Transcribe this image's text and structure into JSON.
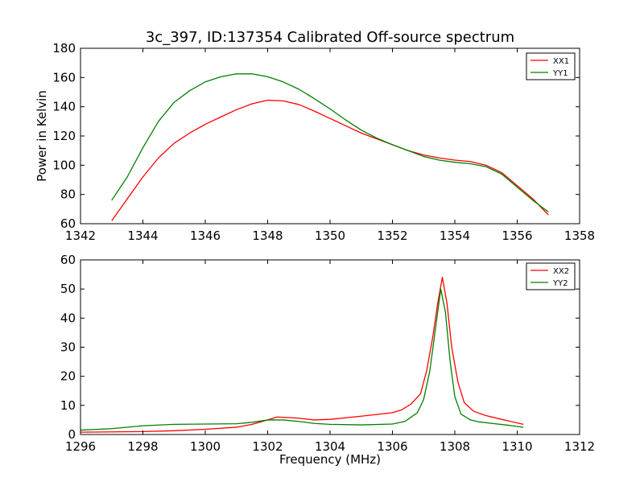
{
  "title": "3c_397, ID:137354 Calibrated Off-source spectrum",
  "chart_data": [
    {
      "type": "line",
      "title": "3c_397, ID:137354 Calibrated Off-source spectrum",
      "xlabel": "",
      "ylabel": "Power in Kelvin",
      "xlim": [
        1342,
        1358
      ],
      "ylim": [
        60,
        180
      ],
      "xticks": [
        1342,
        1344,
        1346,
        1348,
        1350,
        1352,
        1354,
        1356,
        1358
      ],
      "yticks": [
        60,
        80,
        100,
        120,
        140,
        160,
        180
      ],
      "grid": false,
      "legend_position": "top-right",
      "series": [
        {
          "name": "XX1",
          "color": "#ff0000",
          "x": [
            1343.0,
            1343.5,
            1344.0,
            1344.5,
            1345.0,
            1345.5,
            1346.0,
            1346.5,
            1347.0,
            1347.5,
            1348.0,
            1348.5,
            1349.0,
            1349.5,
            1350.0,
            1350.5,
            1351.0,
            1351.5,
            1352.0,
            1352.5,
            1353.0,
            1353.5,
            1354.0,
            1354.5,
            1355.0,
            1355.5,
            1356.0,
            1356.5,
            1357.0
          ],
          "y": [
            62,
            77,
            92,
            105,
            115,
            122,
            128,
            133,
            138,
            142,
            144.5,
            144,
            141.5,
            137,
            132,
            127,
            122,
            118,
            114,
            110,
            107,
            105,
            103.5,
            102.5,
            100,
            95,
            86,
            77,
            66
          ]
        },
        {
          "name": "YY1",
          "color": "#008000",
          "x": [
            1343.0,
            1343.5,
            1344.0,
            1344.5,
            1345.0,
            1345.5,
            1346.0,
            1346.5,
            1347.0,
            1347.5,
            1348.0,
            1348.5,
            1349.0,
            1349.5,
            1350.0,
            1350.5,
            1351.0,
            1351.5,
            1352.0,
            1352.5,
            1353.0,
            1353.5,
            1354.0,
            1354.5,
            1355.0,
            1355.5,
            1356.0,
            1356.5,
            1357.0
          ],
          "y": [
            76,
            92,
            112,
            130,
            143,
            151,
            157,
            160.5,
            162.5,
            162.5,
            160.5,
            157,
            152,
            145.5,
            138.5,
            131,
            124,
            118.5,
            114,
            110,
            106,
            103.5,
            102,
            101,
            99,
            94,
            85,
            76,
            68
          ]
        }
      ]
    },
    {
      "type": "line",
      "title": "",
      "xlabel": "Frequency (MHz)",
      "ylabel": "",
      "xlim": [
        1296,
        1312
      ],
      "ylim": [
        0,
        60
      ],
      "xticks": [
        1296,
        1298,
        1300,
        1302,
        1304,
        1306,
        1308,
        1310,
        1312
      ],
      "yticks": [
        0,
        10,
        20,
        30,
        40,
        50,
        60
      ],
      "grid": false,
      "legend_position": "top-right",
      "series": [
        {
          "name": "XX2",
          "color": "#ff0000",
          "x": [
            1296.0,
            1297.0,
            1298.0,
            1299.0,
            1300.0,
            1301.0,
            1301.5,
            1302.0,
            1302.3,
            1302.7,
            1303.0,
            1303.5,
            1304.0,
            1305.0,
            1306.0,
            1306.3,
            1306.6,
            1306.9,
            1307.1,
            1307.3,
            1307.45,
            1307.6,
            1307.75,
            1307.9,
            1308.1,
            1308.3,
            1308.6,
            1309.0,
            1309.5,
            1310.2
          ],
          "y": [
            0.8,
            0.9,
            1.0,
            1.3,
            1.8,
            2.5,
            3.5,
            5.0,
            6.0,
            5.8,
            5.6,
            5.0,
            5.2,
            6.3,
            7.5,
            8.5,
            10.5,
            14.0,
            22.0,
            34.0,
            45.0,
            54.0,
            45.0,
            30.0,
            18.0,
            11.0,
            8.0,
            6.5,
            5.2,
            3.5
          ]
        },
        {
          "name": "YY2",
          "color": "#008000",
          "x": [
            1296.0,
            1297.0,
            1298.0,
            1299.0,
            1300.0,
            1301.0,
            1301.5,
            1302.0,
            1302.5,
            1303.0,
            1303.5,
            1304.0,
            1305.0,
            1306.0,
            1306.4,
            1306.8,
            1307.0,
            1307.2,
            1307.4,
            1307.55,
            1307.7,
            1307.85,
            1308.0,
            1308.2,
            1308.5,
            1308.8,
            1309.2,
            1309.7,
            1310.2
          ],
          "y": [
            1.5,
            2.0,
            3.0,
            3.5,
            3.6,
            3.7,
            4.2,
            5.0,
            5.0,
            4.5,
            3.8,
            3.5,
            3.3,
            3.6,
            4.5,
            7.5,
            12.0,
            22.0,
            38.0,
            50.0,
            42.0,
            25.0,
            13.0,
            7.0,
            5.0,
            4.3,
            3.8,
            3.2,
            2.5
          ]
        }
      ]
    }
  ]
}
